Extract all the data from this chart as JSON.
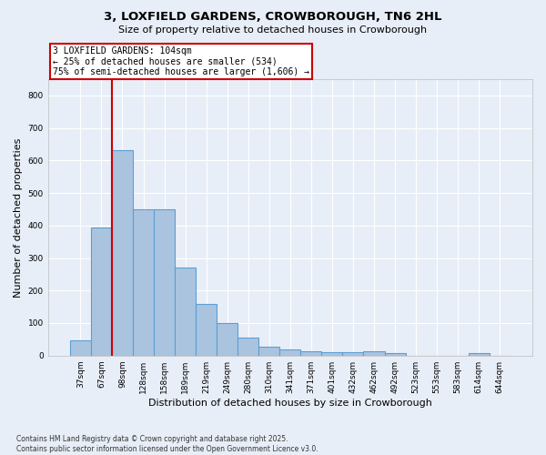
{
  "title_line1": "3, LOXFIELD GARDENS, CROWBOROUGH, TN6 2HL",
  "title_line2": "Size of property relative to detached houses in Crowborough",
  "xlabel": "Distribution of detached houses by size in Crowborough",
  "ylabel": "Number of detached properties",
  "categories": [
    "37sqm",
    "67sqm",
    "98sqm",
    "128sqm",
    "158sqm",
    "189sqm",
    "219sqm",
    "249sqm",
    "280sqm",
    "310sqm",
    "341sqm",
    "371sqm",
    "401sqm",
    "432sqm",
    "462sqm",
    "492sqm",
    "523sqm",
    "553sqm",
    "583sqm",
    "614sqm",
    "644sqm"
  ],
  "values": [
    47,
    393,
    633,
    449,
    449,
    270,
    158,
    100,
    55,
    28,
    18,
    13,
    10,
    10,
    12,
    8,
    0,
    0,
    0,
    8,
    0
  ],
  "bar_color": "#aac4e0",
  "bar_edge_color": "#5a9fd4",
  "background_color": "#e8eef7",
  "grid_color": "#ffffff",
  "vline_x_index": 2,
  "vline_color": "#cc0000",
  "annotation_text": "3 LOXFIELD GARDENS: 104sqm\n← 25% of detached houses are smaller (534)\n75% of semi-detached houses are larger (1,606) →",
  "annotation_box_color": "#ffffff",
  "annotation_box_edge": "#cc0000",
  "footnote_line1": "Contains HM Land Registry data © Crown copyright and database right 2025.",
  "footnote_line2": "Contains public sector information licensed under the Open Government Licence v3.0.",
  "ylim": [
    0,
    850
  ],
  "yticks": [
    0,
    100,
    200,
    300,
    400,
    500,
    600,
    700,
    800
  ]
}
